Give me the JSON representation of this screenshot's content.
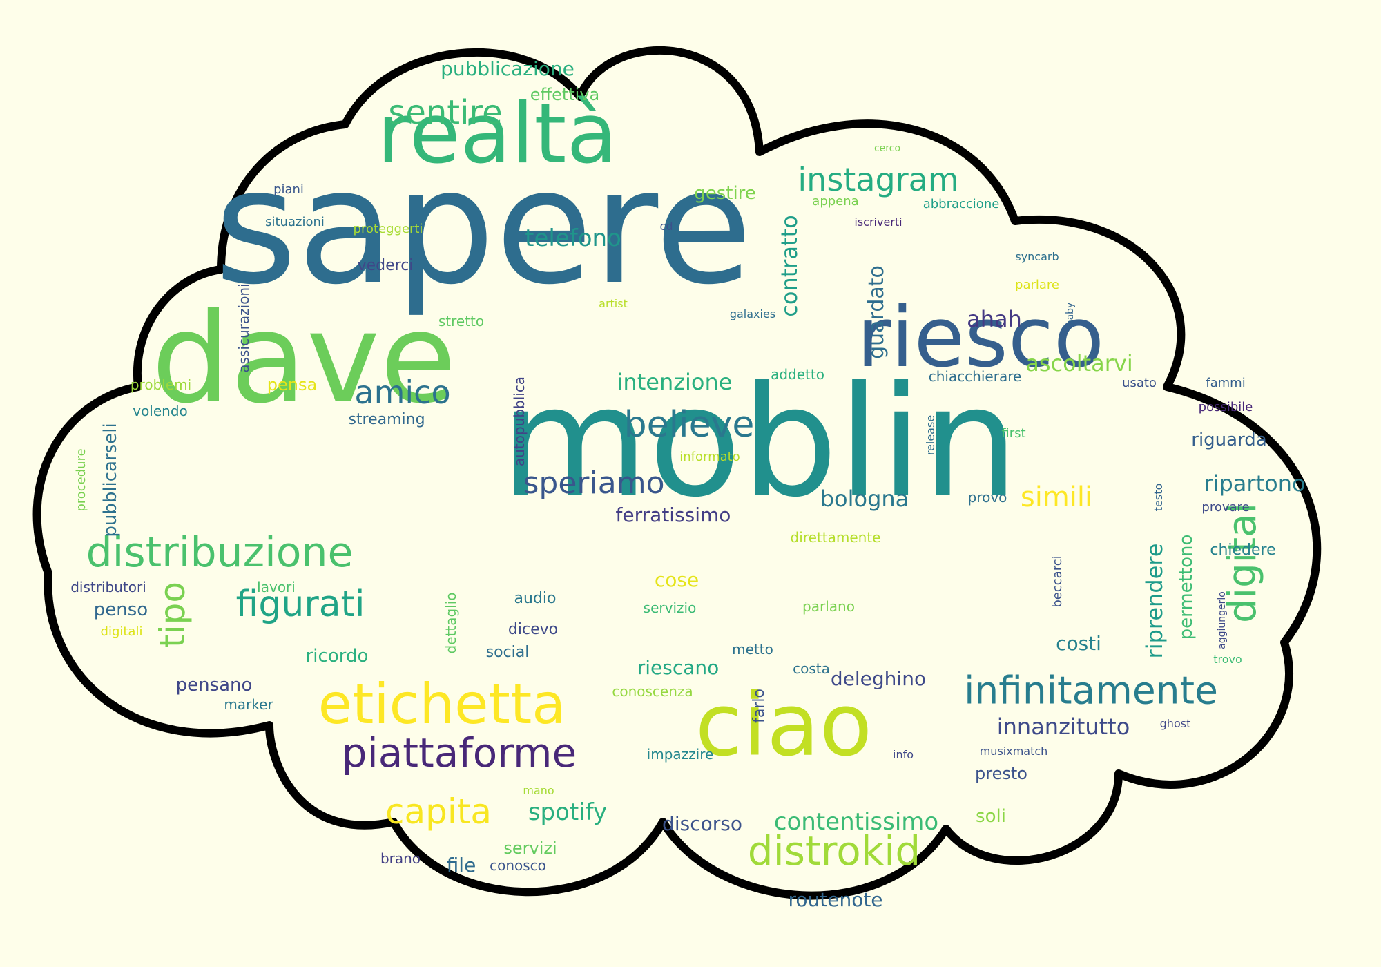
{
  "colors": {
    "background": "#fefeea",
    "cloud_fill": "#fefeea",
    "cloud_outline": "#000000"
  },
  "words": [
    {
      "text": "sapere",
      "color": "#2e6d8e"
    },
    {
      "text": "moblin",
      "color": "#21908d"
    },
    {
      "text": "dave",
      "color": "#6ccd5a"
    },
    {
      "text": "riesco",
      "color": "#355f8d"
    },
    {
      "text": "realtà",
      "color": "#35b779"
    },
    {
      "text": "ciao",
      "color": "#c2df23"
    },
    {
      "text": "etichetta",
      "color": "#fde725"
    },
    {
      "text": "infinitamente",
      "color": "#287d8e"
    },
    {
      "text": "distribuzione",
      "color": "#4ac16d"
    },
    {
      "text": "piattaforme",
      "color": "#482878"
    },
    {
      "text": "distrokid",
      "color": "#a0da39"
    },
    {
      "text": "believe",
      "color": "#2a788e"
    },
    {
      "text": "speriamo",
      "color": "#39568c"
    },
    {
      "text": "amico",
      "color": "#2c728e"
    },
    {
      "text": "figurati",
      "color": "#20a486"
    },
    {
      "text": "instagram",
      "color": "#25ac82"
    },
    {
      "text": "sentire",
      "color": "#3bbb75"
    },
    {
      "text": "digital",
      "color": "#4ac16d"
    },
    {
      "text": "tipo",
      "color": "#7ad151"
    },
    {
      "text": "simili",
      "color": "#fde725"
    },
    {
      "text": "capita",
      "color": "#f8e621"
    },
    {
      "text": "contentissimo",
      "color": "#3bbb75"
    },
    {
      "text": "innanzitutto",
      "color": "#3e4a89"
    },
    {
      "text": "telefono",
      "color": "#1f958b"
    },
    {
      "text": "intenzione",
      "color": "#2ab07f"
    },
    {
      "text": "ascoltarvi",
      "color": "#86d549"
    },
    {
      "text": "bologna",
      "color": "#2a788e"
    },
    {
      "text": "ripartono",
      "color": "#287d8e"
    },
    {
      "text": "riprendere",
      "color": "#1e9b8a"
    },
    {
      "text": "spotify",
      "color": "#29af7f"
    },
    {
      "text": "contratto",
      "color": "#1f9e89"
    },
    {
      "text": "guardato",
      "color": "#2e6e8e"
    },
    {
      "text": "ahah",
      "color": "#443983"
    },
    {
      "text": "costi",
      "color": "#26828e"
    },
    {
      "text": "riescano",
      "color": "#22a884"
    },
    {
      "text": "deleghino",
      "color": "#3e4989"
    },
    {
      "text": "discorso",
      "color": "#3b528b"
    },
    {
      "text": "ferratissimo",
      "color": "#433e85"
    },
    {
      "text": "riguarda",
      "color": "#355f8d"
    },
    {
      "text": "pubblicazione",
      "color": "#29af7f"
    },
    {
      "text": "effettiva",
      "color": "#5ec962"
    },
    {
      "text": "gestire",
      "color": "#7fd34e"
    },
    {
      "text": "pensa",
      "color": "#e5e419"
    },
    {
      "text": "penso",
      "color": "#31688e"
    },
    {
      "text": "pensano",
      "color": "#3f4788"
    },
    {
      "text": "ricordo",
      "color": "#2ab07f"
    },
    {
      "text": "servizi",
      "color": "#63cb5f"
    },
    {
      "text": "file",
      "color": "#2f6b8e"
    },
    {
      "text": "routenote",
      "color": "#31668e"
    },
    {
      "text": "soli",
      "color": "#8bd646"
    },
    {
      "text": "presto",
      "color": "#3b528b"
    },
    {
      "text": "cose",
      "color": "#e5e419"
    },
    {
      "text": "permettono",
      "color": "#3dbc74"
    },
    {
      "text": "pubblicarseli",
      "color": "#2d718e"
    },
    {
      "text": "vederci",
      "color": "#3f4788"
    },
    {
      "text": "assicurazioni",
      "color": "#3b528b"
    },
    {
      "text": "autopubblica",
      "color": "#414487"
    },
    {
      "text": "streaming",
      "color": "#31688e"
    },
    {
      "text": "volendo",
      "color": "#25858e"
    },
    {
      "text": "problemi",
      "color": "#9dd93b"
    },
    {
      "text": "procedure",
      "color": "#7ad151"
    },
    {
      "text": "distributori",
      "color": "#3f4788"
    },
    {
      "text": "lavori",
      "color": "#4ac16d"
    },
    {
      "text": "digitali",
      "color": "#dde318"
    },
    {
      "text": "marker",
      "color": "#2a788e"
    },
    {
      "text": "dettaglio",
      "color": "#5ec962"
    },
    {
      "text": "audio",
      "color": "#2a788e"
    },
    {
      "text": "dicevo",
      "color": "#3e4989"
    },
    {
      "text": "social",
      "color": "#2e6e8e"
    },
    {
      "text": "servizio",
      "color": "#3bbb75"
    },
    {
      "text": "conoscenza",
      "color": "#95d840"
    },
    {
      "text": "metto",
      "color": "#2c728e"
    },
    {
      "text": "impazzire",
      "color": "#24878e"
    },
    {
      "text": "mano",
      "color": "#a5db36"
    },
    {
      "text": "brano",
      "color": "#423f85"
    },
    {
      "text": "conosco",
      "color": "#3a548c"
    },
    {
      "text": "costa",
      "color": "#2c728e"
    },
    {
      "text": "farlo",
      "color": "#3b528b"
    },
    {
      "text": "parlano",
      "color": "#7ad151"
    },
    {
      "text": "direttamente",
      "color": "#b5de2b"
    },
    {
      "text": "informato",
      "color": "#b8de29"
    },
    {
      "text": "first",
      "color": "#4ac16d"
    },
    {
      "text": "release",
      "color": "#2e6e8e"
    },
    {
      "text": "provo",
      "color": "#2d708e"
    },
    {
      "text": "testo",
      "color": "#32648e"
    },
    {
      "text": "provare",
      "color": "#3e4a89"
    },
    {
      "text": "chiedere",
      "color": "#26828e"
    },
    {
      "text": "beccarci",
      "color": "#3b528b"
    },
    {
      "text": "aggiungerlo",
      "color": "#3e4989"
    },
    {
      "text": "trovo",
      "color": "#3bbb75"
    },
    {
      "text": "ghost",
      "color": "#3f4788"
    },
    {
      "text": "info",
      "color": "#3f4788"
    },
    {
      "text": "musixmatch",
      "color": "#3b528b"
    },
    {
      "text": "possibile",
      "color": "#482878"
    },
    {
      "text": "fammi",
      "color": "#355f8d"
    },
    {
      "text": "usato",
      "color": "#3b528b"
    },
    {
      "text": "chiacchierare",
      "color": "#2e6e8e"
    },
    {
      "text": "addetto",
      "color": "#2ab07f"
    },
    {
      "text": "galaxies",
      "color": "#2e6e8e"
    },
    {
      "text": "artist",
      "color": "#b8de29"
    },
    {
      "text": "stretto",
      "color": "#5ec962"
    },
    {
      "text": "parlare",
      "color": "#dde318"
    },
    {
      "text": "baby",
      "color": "#32648e"
    },
    {
      "text": "syncarb",
      "color": "#2d708e"
    },
    {
      "text": "iscriverti",
      "color": "#482878"
    },
    {
      "text": "abbraccione",
      "color": "#1f9e89"
    },
    {
      "text": "appena",
      "color": "#7ad151"
    },
    {
      "text": "cerco",
      "color": "#7ad151"
    },
    {
      "text": "cd",
      "color": "#3b528b"
    },
    {
      "text": "proteggerti",
      "color": "#a8db34"
    },
    {
      "text": "situazioni",
      "color": "#2c728e"
    },
    {
      "text": "piani",
      "color": "#39568c"
    }
  ]
}
